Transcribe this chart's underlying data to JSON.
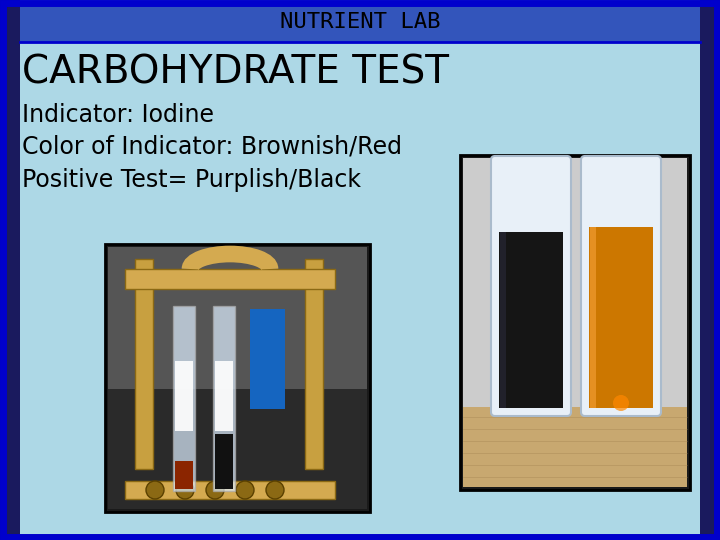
{
  "title": "NUTRIENT LAB",
  "heading": "CARBOHYDRATE TEST",
  "line1": "Indicator: Iodine",
  "line2": "Color of Indicator: Brownish/Red",
  "line3": "Positive Test= Purplish/Black",
  "bg_color": "#add8e6",
  "bg_header": "#3355bb",
  "border_color": "#0000cc",
  "left_strip_color": "#222266",
  "title_color": "#000000",
  "text_color": "#000000",
  "title_fontsize": 16,
  "heading_fontsize": 28,
  "body_fontsize": 17,
  "fig_width": 7.2,
  "fig_height": 5.4,
  "dpi": 100
}
